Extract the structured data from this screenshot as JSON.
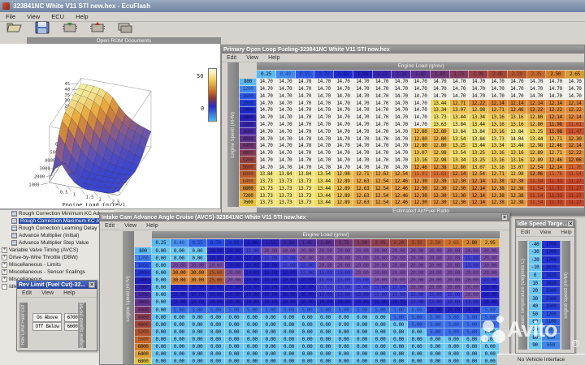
{
  "app": {
    "title": "323841NC White V11 STI new.hex - EcuFlash",
    "menu": [
      "File",
      "View",
      "ECU",
      "Help"
    ],
    "toolbar_icons": [
      "open-rom",
      "save-rom",
      "read-ecu",
      "write-ecu",
      "compare-ecu"
    ],
    "open_rom_label": "Open ROM Documents",
    "status": "No Vehicle Interface",
    "watermark": "Avito"
  },
  "tree": {
    "items": [
      {
        "type": "leaf",
        "label": "Rough Correction Minimum KC Adv",
        "selected": false
      },
      {
        "type": "leaf",
        "label": "Rough Correction Maximum KC Adv",
        "selected": true
      },
      {
        "type": "leaf",
        "label": "Rough Correction Learning Delay",
        "selected": false
      },
      {
        "type": "leaf",
        "label": "Advance Multiplier (Initial)",
        "selected": false
      },
      {
        "type": "leaf",
        "label": "Advance Multiplier Step Value",
        "selected": false
      },
      {
        "type": "node",
        "expand": "+",
        "label": "Variable Valve Timing (AVCS)"
      },
      {
        "type": "node",
        "expand": "+",
        "label": "Drive-by-Wire Throttle (DBW)"
      },
      {
        "type": "node",
        "expand": "+",
        "label": "Miscellaneous - Limits"
      },
      {
        "type": "node",
        "expand": "+",
        "label": "Miscellaneous - Sensor Scalings"
      },
      {
        "type": "node",
        "expand": "+",
        "label": "Miscellaneous"
      },
      {
        "type": "node",
        "expand": "-",
        "label": "Idle Speed"
      }
    ]
  },
  "surface": {
    "xlabel": "Engine Load (g/rev)",
    "z_ticks": [
      "5",
      "10",
      "15",
      "20",
      "25",
      "30",
      "35",
      "40",
      "45"
    ],
    "rpm_ticks": [
      "1000",
      "2000",
      "3000",
      "4000",
      "5000",
      "6000",
      "7000"
    ],
    "load_ticks": [
      "0.5",
      "1",
      "1.5",
      "2",
      "2.5"
    ],
    "colorbar_max": "50",
    "colorbar_min": "0",
    "grid": [
      [
        3,
        14,
        18,
        10,
        4,
        1,
        0,
        0,
        0,
        0,
        1,
        4
      ],
      [
        6,
        12,
        15,
        8,
        3,
        0,
        0,
        0,
        0,
        0,
        1,
        4
      ],
      [
        16,
        10,
        6,
        3,
        1,
        0,
        0,
        0,
        0,
        0,
        1,
        3
      ],
      [
        30,
        22,
        13,
        7,
        3,
        1,
        0,
        0,
        0,
        0,
        1,
        2
      ],
      [
        38,
        32,
        24,
        15,
        9,
        5,
        2,
        1,
        0,
        0,
        0,
        1
      ],
      [
        41,
        37,
        31,
        23,
        16,
        10,
        6,
        3,
        2,
        1,
        0,
        0
      ],
      [
        43,
        41,
        37,
        31,
        24,
        18,
        12,
        8,
        5,
        3,
        2,
        1
      ],
      [
        44,
        43,
        41,
        37,
        31,
        25,
        18,
        14,
        10,
        7,
        5,
        3
      ],
      [
        45,
        44,
        43,
        41,
        37,
        31,
        24,
        18,
        15,
        12,
        9,
        7
      ],
      [
        45,
        45,
        44,
        43,
        41,
        35,
        27,
        22,
        18,
        16,
        13,
        11
      ],
      [
        45,
        45,
        45,
        44,
        42,
        38,
        31,
        25,
        21,
        18,
        16,
        14
      ]
    ]
  },
  "fueling": {
    "title": "Primary Open Loop Fueling-323841NC White V11 STI new.hex",
    "menu": [
      "Edit",
      "View",
      "Help"
    ],
    "top_label": "Engine Load (g/rev)",
    "side_label": "Engine Speed (RPM)",
    "bottom_label": "Estimated Air/Fuel Ratio",
    "columns": [
      "0.25",
      "0.40",
      "0.55",
      "0.70",
      "0.85",
      "1.00",
      "1.15",
      "1.30",
      "1.45",
      "1.60",
      "1.75",
      "1.90",
      "2.05",
      "2.20",
      "2.35",
      "2.50",
      "2.65"
    ],
    "rows": [
      "800",
      "1200",
      "1600",
      "2000",
      "2400",
      "2800",
      "3200",
      "3600",
      "4000",
      "4400",
      "4800",
      "5200",
      "5600",
      "6000",
      "6400",
      "6800",
      "7200",
      "7600"
    ],
    "grid": [
      [
        14.7,
        14.7,
        14.7,
        14.7,
        14.7,
        14.7,
        14.7,
        14.7,
        14.7,
        14.7,
        14.7,
        14.7,
        14.7,
        14.7,
        14.7,
        14.7,
        14.7
      ],
      [
        14.7,
        14.7,
        14.7,
        14.7,
        14.7,
        14.7,
        14.7,
        14.7,
        14.7,
        14.7,
        14.7,
        14.7,
        14.7,
        14.7,
        14.7,
        14.7,
        14.7
      ],
      [
        14.7,
        14.7,
        14.7,
        14.7,
        14.7,
        14.7,
        14.7,
        14.7,
        14.7,
        14.7,
        14.7,
        14.7,
        14.7,
        14.7,
        14.7,
        14.7,
        14.7
      ],
      [
        14.7,
        14.7,
        14.7,
        14.7,
        14.7,
        14.7,
        14.7,
        14.7,
        14.7,
        13.44,
        12.71,
        12.22,
        12.14,
        12.14,
        12.14,
        12.14,
        12.14
      ],
      [
        14.7,
        14.7,
        14.7,
        14.7,
        14.7,
        14.7,
        14.7,
        14.7,
        14.7,
        13.34,
        13.07,
        12.98,
        12.71,
        12.46,
        12.22,
        12.22,
        12.22
      ],
      [
        14.7,
        14.7,
        14.7,
        14.7,
        14.7,
        14.7,
        14.7,
        14.7,
        14.7,
        13.73,
        13.44,
        13.34,
        13.16,
        13.16,
        12.8,
        12.14,
        12.14
      ],
      [
        14.7,
        14.7,
        14.7,
        14.7,
        14.7,
        14.7,
        14.7,
        14.7,
        14.7,
        13.63,
        13.84,
        13.44,
        13.16,
        13.16,
        12.8,
        11.98,
        11.61
      ],
      [
        14.7,
        14.7,
        14.7,
        14.7,
        14.7,
        14.7,
        14.7,
        14.7,
        12.8,
        12.8,
        13.84,
        13.84,
        13.16,
        13.84,
        13.25,
        11.98,
        11.47
      ],
      [
        14.7,
        14.7,
        14.7,
        14.7,
        14.7,
        14.7,
        14.7,
        14.7,
        12.8,
        12.8,
        13.54,
        13.84,
        13.73,
        14.04,
        13.44,
        12.71,
        12.3
      ],
      [
        14.7,
        14.7,
        14.7,
        14.7,
        14.7,
        14.7,
        14.7,
        14.7,
        12.8,
        12.8,
        13.25,
        13.44,
        13.34,
        13.44,
        12.98,
        12.46,
        12.14
      ],
      [
        14.7,
        14.7,
        14.7,
        14.7,
        14.7,
        14.7,
        14.7,
        14.7,
        13.07,
        12.98,
        13.54,
        13.25,
        13.16,
        13.16,
        12.89,
        12.71,
        12.22
      ],
      [
        14.7,
        14.7,
        14.7,
        14.7,
        14.7,
        14.7,
        14.7,
        14.7,
        13.16,
        12.98,
        13.34,
        13.25,
        13.16,
        13.16,
        12.89,
        12.46,
        12.06
      ],
      [
        14.7,
        14.7,
        14.7,
        14.7,
        14.7,
        14.7,
        14.7,
        14.7,
        12.46,
        12.38,
        12.8,
        13.07,
        13.16,
        13.07,
        12.54,
        12.14,
        11.76
      ],
      [
        13.84,
        13.84,
        13.84,
        13.54,
        12.98,
        12.71,
        12.63,
        12.54,
        11.91,
        11.83,
        12.14,
        12.54,
        12.71,
        12.98,
        12.06,
        11.76,
        11.54
      ],
      [
        13.73,
        13.73,
        13.73,
        13.44,
        12.89,
        12.63,
        12.54,
        12.46,
        12.3,
        12.3,
        12.3,
        12.14,
        12.38,
        12.38,
        11.54,
        11.33,
        11.27
      ],
      [
        13.73,
        13.73,
        13.73,
        13.44,
        12.89,
        12.63,
        12.54,
        12.46,
        12.3,
        12.3,
        12.3,
        12.14,
        12.38,
        12.38,
        11.54,
        11.33,
        11.27
      ],
      [
        13.73,
        13.73,
        13.73,
        13.44,
        12.89,
        12.63,
        12.54,
        12.46,
        12.3,
        12.3,
        12.3,
        12.14,
        12.38,
        12.38,
        11.54,
        11.33,
        11.27
      ],
      [
        13.73,
        13.73,
        13.73,
        13.44,
        12.89,
        12.63,
        12.54,
        12.46,
        12.3,
        12.3,
        12.3,
        12.14,
        12.38,
        12.38,
        11.54,
        11.33,
        11.27
      ]
    ]
  },
  "avcs": {
    "title": "Intake Cam Advance Angle Cruise (AVCS)-323841NC White V11 STI new.hex",
    "menu": [
      "Edit",
      "View",
      "Help"
    ],
    "top_label": "Engine Load (g/rev)",
    "side_label": "Engine Speed (RPM)",
    "columns": [
      "0.25",
      "0.40",
      "0.55",
      "0.70",
      "0.85",
      "1.00",
      "1.15",
      "1.30",
      "1.45",
      "1.60",
      "1.75",
      "1.90",
      "2.05",
      "2.20",
      "2.35",
      "2.50",
      "2.65",
      "2.80",
      "2.95"
    ],
    "rows": [
      "800",
      "1200",
      "1600",
      "2000",
      "2400",
      "2800",
      "3200",
      "3600",
      "4000",
      "4400",
      "4800",
      "5200",
      "5600",
      "6000",
      "6400",
      "6800"
    ],
    "grid": [
      [
        0,
        0,
        0,
        10,
        10,
        15,
        20,
        20,
        20,
        20,
        20,
        20,
        20,
        20,
        20,
        20,
        20,
        20,
        20
      ],
      [
        0,
        0,
        0,
        10,
        10,
        10,
        15,
        15,
        20,
        20,
        20,
        20,
        20,
        20,
        20,
        20,
        20,
        15,
        20
      ],
      [
        0,
        20,
        20,
        20,
        10,
        10,
        10,
        15,
        15,
        20,
        20,
        20,
        20,
        20,
        20,
        20,
        20,
        15,
        20
      ],
      [
        0,
        30,
        30,
        25,
        20,
        10,
        10,
        10,
        15,
        15,
        15,
        20,
        20,
        20,
        20,
        20,
        20,
        20,
        20
      ],
      [
        0,
        30,
        30,
        25,
        20,
        10,
        10,
        10,
        10,
        15,
        15,
        15,
        20,
        20,
        20,
        20,
        20,
        20,
        13
      ],
      [
        0,
        10,
        10,
        10,
        10,
        10,
        10,
        10,
        10,
        15,
        15,
        15,
        15,
        15,
        20,
        20,
        20,
        20,
        10
      ],
      [
        0,
        10,
        10,
        10,
        10,
        10,
        10,
        10,
        10,
        13,
        13,
        13,
        15,
        15,
        15,
        15,
        15,
        20,
        10
      ],
      [
        0,
        10,
        10,
        10,
        10,
        10,
        10,
        10,
        10,
        10,
        10,
        10,
        10,
        10,
        13,
        13,
        13,
        13,
        10
      ],
      [
        0,
        5,
        5,
        5,
        5,
        5,
        5,
        5,
        5,
        5,
        5,
        5,
        5,
        5,
        5,
        10,
        10,
        10,
        5
      ],
      [
        0,
        0,
        0,
        0,
        0,
        0,
        0,
        0,
        0,
        0,
        0,
        0,
        0,
        5,
        5,
        5,
        5,
        5,
        5
      ],
      [
        0,
        0,
        0,
        0,
        0,
        0,
        0,
        0,
        0,
        0,
        0,
        0,
        0,
        0,
        5,
        5,
        5,
        5,
        5
      ],
      [
        0,
        0,
        0,
        0,
        0,
        0,
        0,
        0,
        0,
        0,
        0,
        0,
        0,
        0,
        0,
        5,
        5,
        5,
        0
      ],
      [
        0,
        0,
        0,
        0,
        0,
        0,
        0,
        0,
        0,
        0,
        0,
        0,
        0,
        0,
        0,
        0,
        0,
        0,
        0
      ],
      [
        0,
        0,
        0,
        0,
        0,
        0,
        0,
        0,
        0,
        0,
        0,
        0,
        0,
        0,
        0,
        0,
        0,
        0,
        0
      ],
      [
        0,
        0,
        0,
        0,
        0,
        0,
        0,
        0,
        0,
        0,
        0,
        0,
        0,
        0,
        0,
        0,
        0,
        0,
        0
      ],
      [
        0,
        0,
        0,
        0,
        0,
        0,
        0,
        0,
        0,
        0,
        0,
        0,
        0,
        0,
        0,
        0,
        0,
        0,
        0
      ]
    ]
  },
  "idle": {
    "title": "Idle Speed Targe...",
    "menu": [
      "Edit",
      "View",
      "Help"
    ],
    "left_label": "Coolant Temperature (Degrees C)",
    "right_label": "Engine Speed (RPM)",
    "temps": [
      "-40",
      "-30",
      "-20",
      "-10",
      "0",
      "10",
      "20",
      "30",
      "40",
      "50",
      "60",
      "70",
      "80",
      "90"
    ],
    "rpms": [
      "1700",
      "1700",
      "1700",
      "1675",
      "1625",
      "1650",
      "1500",
      "1500",
      "1500",
      "1200",
      "1100",
      "875",
      "650",
      "650"
    ]
  },
  "revlimit": {
    "title": "Rev Limit (Fuel Cut)-32...",
    "menu": [
      "Edit",
      "View",
      "Help"
    ],
    "left_label": "Rev Limit Fuel Cut",
    "right_label": "Engine Speed (RPM)",
    "rows": [
      {
        "label": "On Above",
        "value": "6700"
      },
      {
        "label": "Off Below",
        "value": "6600"
      }
    ]
  }
}
